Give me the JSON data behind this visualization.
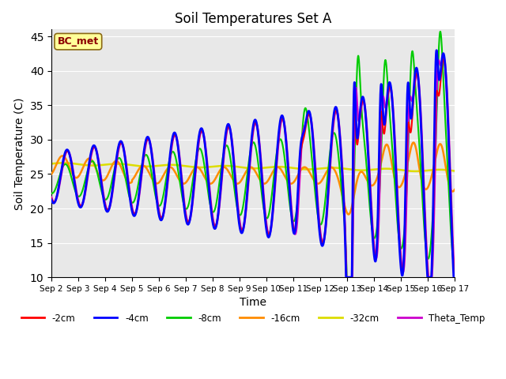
{
  "title": "Soil Temperatures Set A",
  "xlabel": "Time",
  "ylabel": "Soil Temperature (C)",
  "ylim": [
    10,
    46
  ],
  "yticks": [
    10,
    15,
    20,
    25,
    30,
    35,
    40,
    45
  ],
  "annotation_text": "BC_met",
  "annotation_color": "#8B0000",
  "annotation_bg": "#FFFF99",
  "bg_color": "#E8E8E8",
  "line_colors": {
    "-2cm": "#FF0000",
    "-4cm": "#0000FF",
    "-8cm": "#00CC00",
    "-16cm": "#FF8C00",
    "-32cm": "#DDDD00",
    "Theta_Temp": "#CC00CC"
  },
  "num_days": 15,
  "start_day": 2
}
